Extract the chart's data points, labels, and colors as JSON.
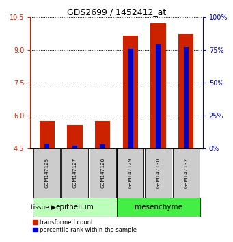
{
  "title": "GDS2699 / 1452412_at",
  "samples": [
    "GSM147125",
    "GSM147127",
    "GSM147128",
    "GSM147129",
    "GSM147130",
    "GSM147132"
  ],
  "red_values": [
    5.75,
    5.55,
    5.75,
    9.65,
    10.2,
    9.7
  ],
  "blue_values": [
    4.72,
    4.62,
    4.68,
    9.05,
    9.25,
    9.12
  ],
  "ylim_left": [
    4.5,
    10.5
  ],
  "ylim_right": [
    0,
    100
  ],
  "yticks_left": [
    4.5,
    6.0,
    7.5,
    9.0,
    10.5
  ],
  "yticks_right": [
    0,
    25,
    50,
    75,
    100
  ],
  "red_color": "#cc2200",
  "blue_color": "#0000cc",
  "tissue_groups": [
    {
      "label": "epithelium",
      "color": "#bbffbb",
      "count": 3
    },
    {
      "label": "mesenchyme",
      "color": "#44ee44",
      "count": 3
    }
  ],
  "tissue_label": "tissue",
  "legend_red": "transformed count",
  "legend_blue": "percentile rank within the sample",
  "tick_color_left": "#cc2200",
  "tick_color_right": "#0000cc",
  "sample_box_color": "#cccccc",
  "base_value": 4.5,
  "bar_width": 0.55,
  "blue_bar_width": 0.18
}
